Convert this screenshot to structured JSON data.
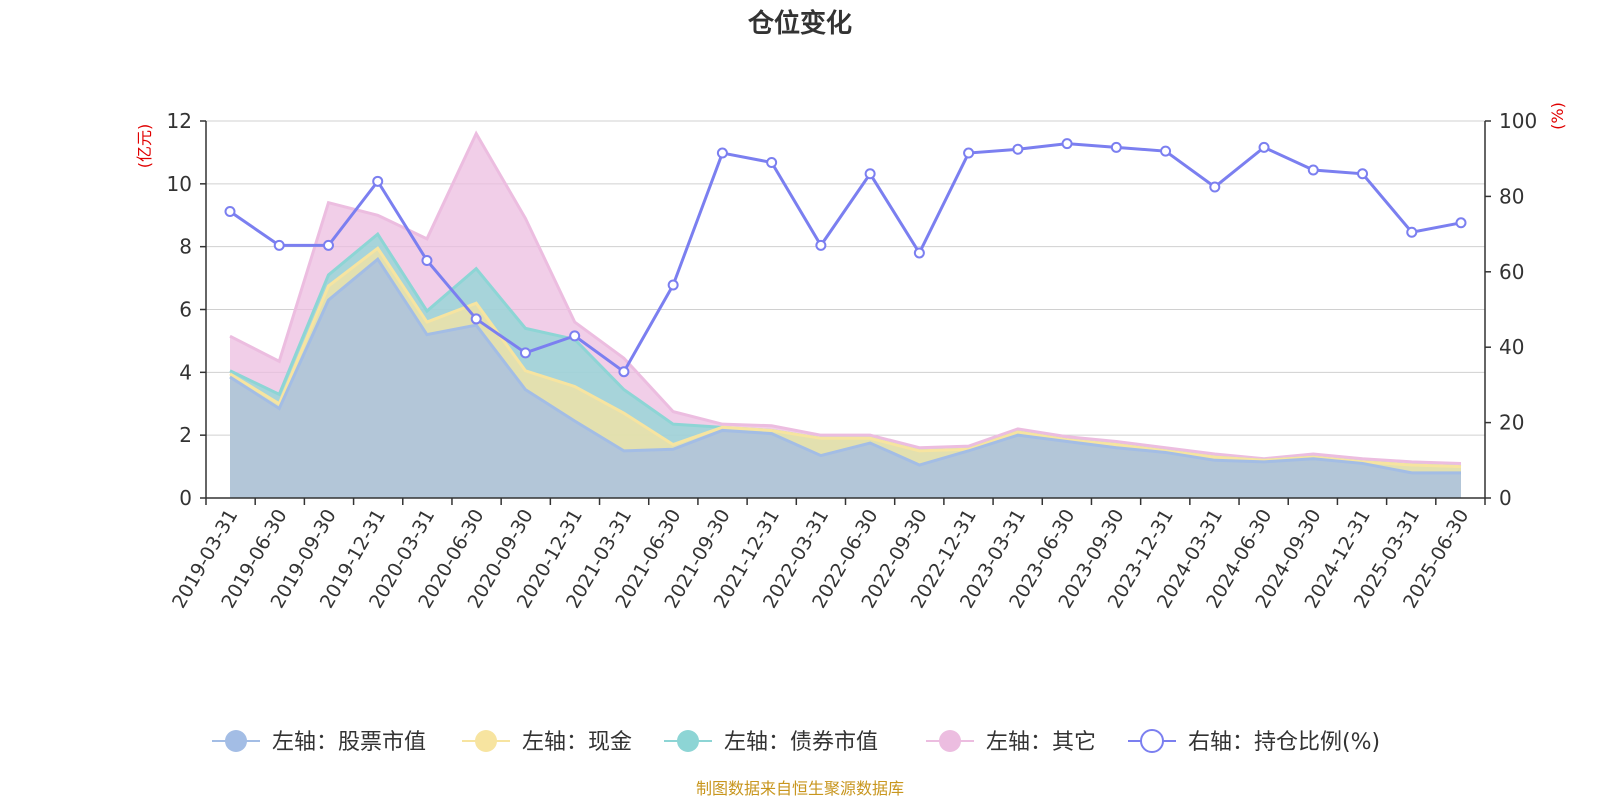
{
  "chart_data": {
    "type": "area",
    "title": "仓位变化",
    "left_axis_unit": "(亿元)",
    "right_axis_unit": "(%)",
    "left_ylim": [
      0,
      12
    ],
    "right_ylim": [
      0,
      100
    ],
    "left_yticks": [
      "0",
      "2",
      "4",
      "6",
      "8",
      "10",
      "12"
    ],
    "right_yticks": [
      "0",
      "20",
      "40",
      "60",
      "80",
      "100"
    ],
    "grid": true,
    "legend_placement": "bottom",
    "source": "制图数据来自恒生聚源数据库",
    "categories": [
      "2019-03-31",
      "2019-06-30",
      "2019-09-30",
      "2019-12-31",
      "2020-03-31",
      "2020-06-30",
      "2020-09-30",
      "2020-12-31",
      "2021-03-31",
      "2021-06-30",
      "2021-09-30",
      "2021-12-31",
      "2022-03-31",
      "2022-06-30",
      "2022-09-30",
      "2022-12-31",
      "2023-03-31",
      "2023-06-30",
      "2023-09-30",
      "2023-12-31",
      "2024-03-31",
      "2024-06-30",
      "2024-09-30",
      "2024-12-31",
      "2025-03-31",
      "2025-06-30"
    ],
    "series": [
      {
        "name": "左轴：股票市值",
        "axis": "left",
        "kind": "stacked-area",
        "color": "#a3bde5",
        "values": [
          3.85,
          2.85,
          6.3,
          7.6,
          5.2,
          5.5,
          3.45,
          2.45,
          1.5,
          1.55,
          2.15,
          2.05,
          1.35,
          1.75,
          1.05,
          1.5,
          2.0,
          1.8,
          1.6,
          1.45,
          1.2,
          1.15,
          1.25,
          1.1,
          0.8,
          0.8
        ]
      },
      {
        "name": "左轴：现金",
        "axis": "left",
        "kind": "stacked-area",
        "color": "#f7e4a0",
        "values": [
          0.1,
          0.15,
          0.45,
          0.35,
          0.4,
          0.7,
          0.6,
          1.1,
          1.2,
          0.15,
          0.1,
          0.1,
          0.55,
          0.15,
          0.45,
          0.05,
          0.1,
          0.05,
          0.1,
          0.05,
          0.1,
          0.05,
          0.05,
          0.05,
          0.25,
          0.2
        ]
      },
      {
        "name": "左轴：债券市值",
        "axis": "left",
        "kind": "stacked-area",
        "color": "#8dd5d5",
        "values": [
          0.1,
          0.3,
          0.35,
          0.45,
          0.35,
          1.1,
          1.35,
          1.5,
          0.75,
          0.65,
          0,
          0,
          0,
          0,
          0,
          0,
          0,
          0,
          0,
          0,
          0,
          0,
          0,
          0,
          0,
          0
        ]
      },
      {
        "name": "左轴：其它",
        "axis": "left",
        "kind": "stacked-area",
        "color": "#ecbde0",
        "values": [
          1.1,
          1.05,
          2.3,
          0.6,
          2.3,
          4.3,
          3.5,
          0.55,
          1.0,
          0.4,
          0.1,
          0.15,
          0.1,
          0.1,
          0.1,
          0.1,
          0.1,
          0.1,
          0.1,
          0.1,
          0.1,
          0.05,
          0.1,
          0.1,
          0.1,
          0.1
        ]
      },
      {
        "name": "右轴：持仓比例(%)",
        "axis": "right",
        "kind": "line",
        "color": "#7b7ff0",
        "values": [
          76,
          67,
          67,
          84,
          63,
          47.5,
          38.5,
          43,
          33.5,
          56.5,
          91.5,
          89,
          67,
          86,
          65,
          91.5,
          92.5,
          94,
          93,
          92,
          82.5,
          93,
          87,
          86,
          70.5,
          73
        ]
      }
    ]
  }
}
